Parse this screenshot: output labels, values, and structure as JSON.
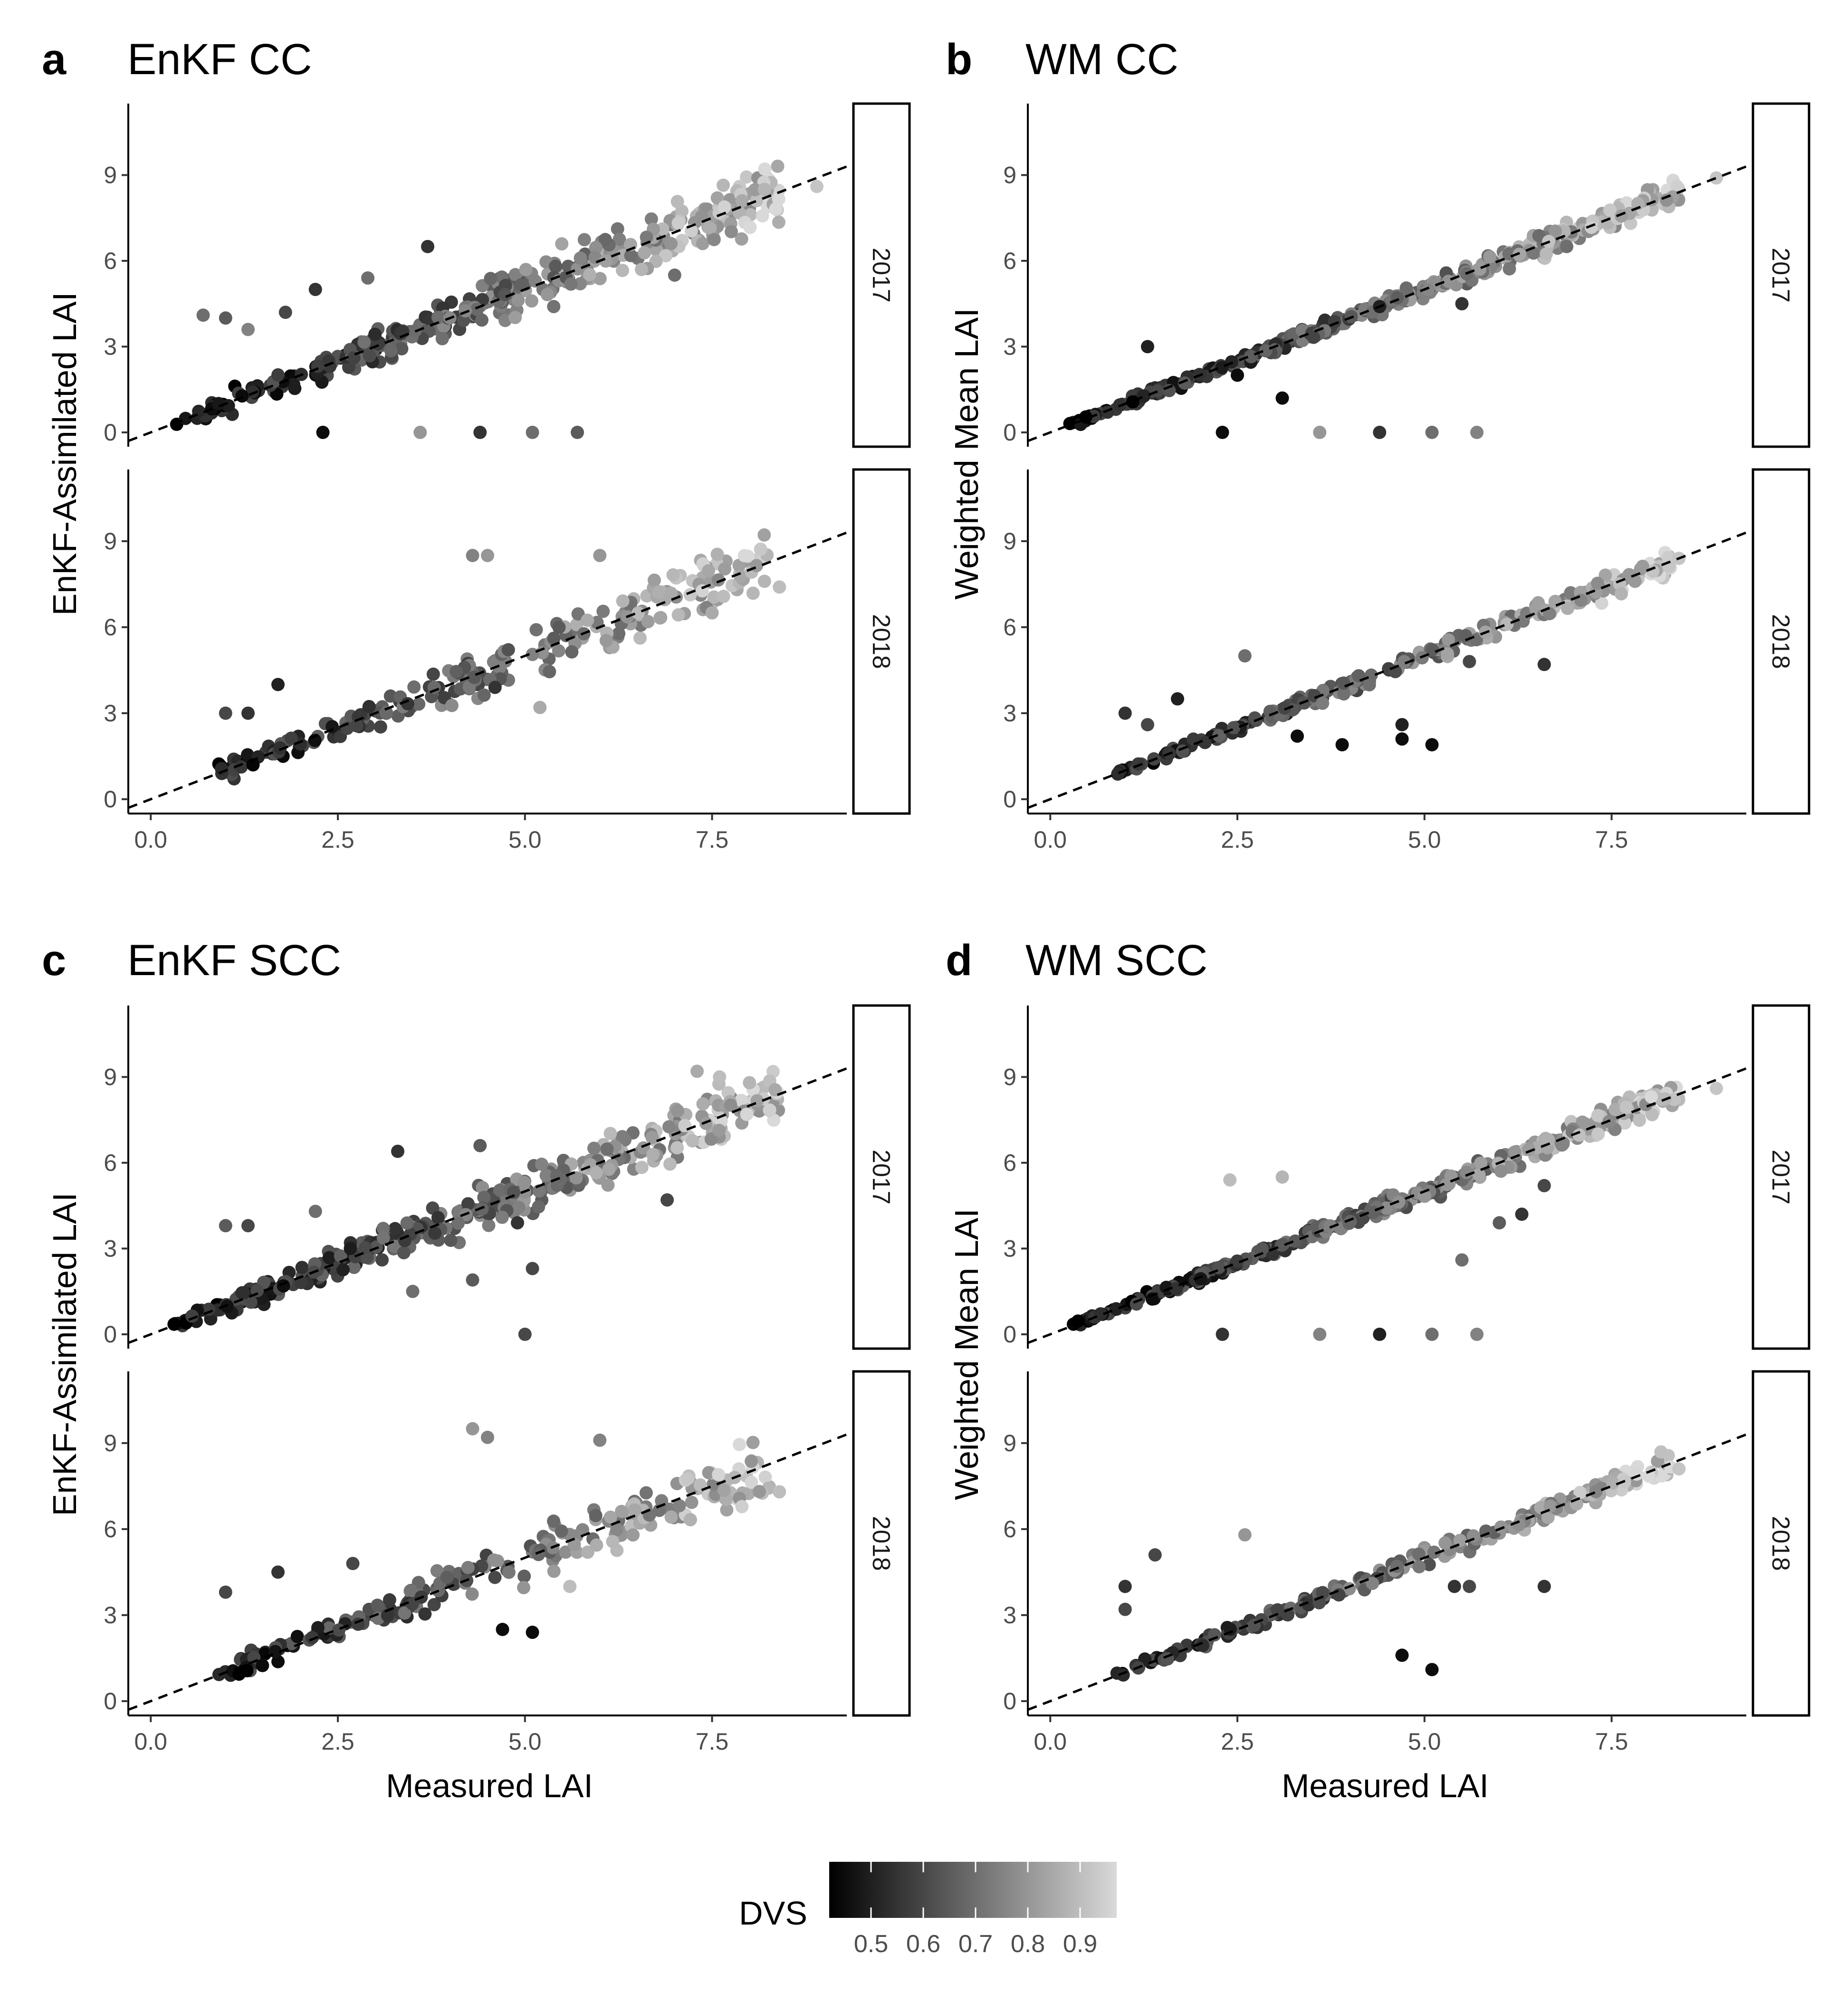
{
  "chart_data": [
    {
      "panel": "a",
      "title": "EnKF CC",
      "type": "scatter",
      "xlabel": "",
      "ylabel": "EnKF-Assimilated LAI",
      "xlim": [
        -0.3,
        9.3
      ],
      "ylim": [
        -0.5,
        11.5
      ],
      "xticks": [
        "0.0",
        "2.5",
        "5.0",
        "7.5"
      ],
      "yticks": [
        "0",
        "3",
        "6",
        "9"
      ],
      "reference_line": "1:1 dashed",
      "facets": [
        {
          "label": "2017",
          "seed": 11,
          "points": [
            {
              "x": 2.3,
              "y": 0.0,
              "dvs": 0.45
            },
            {
              "x": 3.6,
              "y": 0.0,
              "dvs": 0.8
            },
            {
              "x": 4.4,
              "y": 0.0,
              "dvs": 0.55
            },
            {
              "x": 5.1,
              "y": 0.0,
              "dvs": 0.7
            },
            {
              "x": 5.7,
              "y": 0.0,
              "dvs": 0.65
            },
            {
              "x": 0.7,
              "y": 4.1,
              "dvs": 0.7
            },
            {
              "x": 1.0,
              "y": 4.0,
              "dvs": 0.65
            },
            {
              "x": 1.3,
              "y": 3.6,
              "dvs": 0.75
            },
            {
              "x": 1.8,
              "y": 4.2,
              "dvs": 0.6
            },
            {
              "x": 2.2,
              "y": 5.0,
              "dvs": 0.55
            },
            {
              "x": 2.9,
              "y": 5.4,
              "dvs": 0.7
            },
            {
              "x": 3.7,
              "y": 6.5,
              "dvs": 0.55
            },
            {
              "x": 8.9,
              "y": 8.6,
              "dvs": 0.92
            },
            {
              "x": 8.2,
              "y": 8.5,
              "dvs": 0.88
            },
            {
              "x": 7.9,
              "y": 8.1,
              "dvs": 0.85
            },
            {
              "x": 7.0,
              "y": 5.5,
              "dvs": 0.7
            }
          ]
        },
        {
          "label": "2018",
          "seed": 12,
          "points": [
            {
              "x": 4.3,
              "y": 8.5,
              "dvs": 0.75
            },
            {
              "x": 4.5,
              "y": 8.5,
              "dvs": 0.8
            },
            {
              "x": 6.0,
              "y": 8.5,
              "dvs": 0.8
            },
            {
              "x": 1.0,
              "y": 3.0,
              "dvs": 0.6
            },
            {
              "x": 1.3,
              "y": 3.0,
              "dvs": 0.55
            },
            {
              "x": 1.7,
              "y": 4.0,
              "dvs": 0.5
            },
            {
              "x": 5.2,
              "y": 3.2,
              "dvs": 0.85
            },
            {
              "x": 8.4,
              "y": 7.4,
              "dvs": 0.9
            },
            {
              "x": 8.2,
              "y": 7.6,
              "dvs": 0.88
            },
            {
              "x": 7.5,
              "y": 6.5,
              "dvs": 0.85
            },
            {
              "x": 4.6,
              "y": 3.9,
              "dvs": 0.55
            }
          ]
        }
      ]
    },
    {
      "panel": "b",
      "title": "WM CC",
      "type": "scatter",
      "xlabel": "",
      "ylabel": "Weighted Mean LAI",
      "xlim": [
        -0.3,
        9.3
      ],
      "ylim": [
        -0.5,
        11.5
      ],
      "xticks": [
        "0.0",
        "2.5",
        "5.0",
        "7.5"
      ],
      "yticks": [
        "0",
        "3",
        "6",
        "9"
      ],
      "reference_line": "1:1 dashed",
      "facets": [
        {
          "label": "2017",
          "seed": 21,
          "points": [
            {
              "x": 2.3,
              "y": 0.0,
              "dvs": 0.45
            },
            {
              "x": 3.6,
              "y": 0.0,
              "dvs": 0.8
            },
            {
              "x": 4.4,
              "y": 0.0,
              "dvs": 0.55
            },
            {
              "x": 5.1,
              "y": 0.0,
              "dvs": 0.7
            },
            {
              "x": 5.7,
              "y": 0.0,
              "dvs": 0.75
            },
            {
              "x": 1.3,
              "y": 3.0,
              "dvs": 0.5
            },
            {
              "x": 2.5,
              "y": 2.0,
              "dvs": 0.45
            },
            {
              "x": 3.1,
              "y": 1.2,
              "dvs": 0.45
            },
            {
              "x": 8.9,
              "y": 8.9,
              "dvs": 0.92
            },
            {
              "x": 4.4,
              "y": 4.4,
              "dvs": 0.5
            },
            {
              "x": 5.5,
              "y": 4.5,
              "dvs": 0.55
            },
            {
              "x": 6.9,
              "y": 6.5,
              "dvs": 0.7
            }
          ]
        },
        {
          "label": "2018",
          "seed": 22,
          "points": [
            {
              "x": 2.6,
              "y": 5.0,
              "dvs": 0.7
            },
            {
              "x": 6.6,
              "y": 4.7,
              "dvs": 0.55
            },
            {
              "x": 5.6,
              "y": 4.8,
              "dvs": 0.6
            },
            {
              "x": 5.1,
              "y": 1.9,
              "dvs": 0.45
            },
            {
              "x": 4.7,
              "y": 2.6,
              "dvs": 0.5
            },
            {
              "x": 4.7,
              "y": 2.1,
              "dvs": 0.45
            },
            {
              "x": 3.9,
              "y": 1.9,
              "dvs": 0.45
            },
            {
              "x": 3.3,
              "y": 2.2,
              "dvs": 0.45
            },
            {
              "x": 1.0,
              "y": 3.0,
              "dvs": 0.55
            },
            {
              "x": 1.3,
              "y": 2.6,
              "dvs": 0.6
            },
            {
              "x": 1.7,
              "y": 3.5,
              "dvs": 0.5
            },
            {
              "x": 8.4,
              "y": 8.4,
              "dvs": 0.92
            }
          ]
        }
      ]
    },
    {
      "panel": "c",
      "title": "EnKF SCC",
      "type": "scatter",
      "xlabel": "Measured LAI",
      "ylabel": "EnKF-Assimilated LAI",
      "xlim": [
        -0.3,
        9.3
      ],
      "ylim": [
        -0.5,
        11.5
      ],
      "xticks": [
        "0.0",
        "2.5",
        "5.0",
        "7.5"
      ],
      "yticks": [
        "0",
        "3",
        "6",
        "9"
      ],
      "reference_line": "1:1 dashed",
      "facets": [
        {
          "label": "2017",
          "seed": 31,
          "points": [
            {
              "x": 5.0,
              "y": 0.0,
              "dvs": 0.6
            },
            {
              "x": 1.0,
              "y": 3.8,
              "dvs": 0.65
            },
            {
              "x": 1.3,
              "y": 3.8,
              "dvs": 0.6
            },
            {
              "x": 2.2,
              "y": 4.3,
              "dvs": 0.7
            },
            {
              "x": 3.3,
              "y": 6.4,
              "dvs": 0.55
            },
            {
              "x": 4.4,
              "y": 6.6,
              "dvs": 0.65
            },
            {
              "x": 7.3,
              "y": 9.2,
              "dvs": 0.85
            },
            {
              "x": 7.6,
              "y": 9.0,
              "dvs": 0.9
            },
            {
              "x": 8.0,
              "y": 8.8,
              "dvs": 0.88
            },
            {
              "x": 6.9,
              "y": 4.7,
              "dvs": 0.6
            },
            {
              "x": 5.1,
              "y": 2.3,
              "dvs": 0.6
            },
            {
              "x": 4.3,
              "y": 1.9,
              "dvs": 0.65
            },
            {
              "x": 3.5,
              "y": 1.5,
              "dvs": 0.7
            },
            {
              "x": 4.9,
              "y": 3.9,
              "dvs": 0.55
            }
          ]
        },
        {
          "label": "2018",
          "seed": 32,
          "points": [
            {
              "x": 4.3,
              "y": 9.5,
              "dvs": 0.8
            },
            {
              "x": 4.5,
              "y": 9.2,
              "dvs": 0.75
            },
            {
              "x": 6.0,
              "y": 9.1,
              "dvs": 0.75
            },
            {
              "x": 1.0,
              "y": 3.8,
              "dvs": 0.6
            },
            {
              "x": 1.7,
              "y": 4.5,
              "dvs": 0.55
            },
            {
              "x": 2.7,
              "y": 4.8,
              "dvs": 0.6
            },
            {
              "x": 4.7,
              "y": 2.5,
              "dvs": 0.45
            },
            {
              "x": 5.1,
              "y": 2.4,
              "dvs": 0.45
            },
            {
              "x": 5.6,
              "y": 4.0,
              "dvs": 0.9
            },
            {
              "x": 8.4,
              "y": 7.3,
              "dvs": 0.9
            },
            {
              "x": 7.8,
              "y": 7.8,
              "dvs": 0.88
            }
          ]
        }
      ]
    },
    {
      "panel": "d",
      "title": "WM SCC",
      "type": "scatter",
      "xlabel": "Measured LAI",
      "ylabel": "Weighted Mean LAI",
      "xlim": [
        -0.3,
        9.3
      ],
      "ylim": [
        -0.5,
        11.5
      ],
      "xticks": [
        "0.0",
        "2.5",
        "5.0",
        "7.5"
      ],
      "yticks": [
        "0",
        "3",
        "6",
        "9"
      ],
      "reference_line": "1:1 dashed",
      "facets": [
        {
          "label": "2017",
          "seed": 41,
          "points": [
            {
              "x": 2.3,
              "y": 0.0,
              "dvs": 0.55
            },
            {
              "x": 3.6,
              "y": 0.0,
              "dvs": 0.75
            },
            {
              "x": 4.4,
              "y": 0.0,
              "dvs": 0.5
            },
            {
              "x": 5.1,
              "y": 0.0,
              "dvs": 0.7
            },
            {
              "x": 5.7,
              "y": 0.0,
              "dvs": 0.75
            },
            {
              "x": 2.4,
              "y": 5.4,
              "dvs": 0.9
            },
            {
              "x": 3.1,
              "y": 5.5,
              "dvs": 0.88
            },
            {
              "x": 6.6,
              "y": 5.2,
              "dvs": 0.6
            },
            {
              "x": 6.3,
              "y": 4.2,
              "dvs": 0.55
            },
            {
              "x": 6.0,
              "y": 3.9,
              "dvs": 0.65
            },
            {
              "x": 8.9,
              "y": 8.6,
              "dvs": 0.92
            },
            {
              "x": 5.5,
              "y": 2.6,
              "dvs": 0.7
            }
          ]
        },
        {
          "label": "2018",
          "seed": 42,
          "points": [
            {
              "x": 2.6,
              "y": 5.8,
              "dvs": 0.8
            },
            {
              "x": 6.6,
              "y": 4.0,
              "dvs": 0.55
            },
            {
              "x": 5.6,
              "y": 4.0,
              "dvs": 0.6
            },
            {
              "x": 5.4,
              "y": 4.0,
              "dvs": 0.55
            },
            {
              "x": 5.1,
              "y": 1.1,
              "dvs": 0.45
            },
            {
              "x": 4.7,
              "y": 1.6,
              "dvs": 0.45
            },
            {
              "x": 1.0,
              "y": 4.0,
              "dvs": 0.55
            },
            {
              "x": 1.4,
              "y": 5.1,
              "dvs": 0.6
            },
            {
              "x": 1.0,
              "y": 3.2,
              "dvs": 0.6
            },
            {
              "x": 8.4,
              "y": 8.1,
              "dvs": 0.92
            }
          ]
        }
      ]
    }
  ],
  "legend": {
    "title": "DVS",
    "ticks": [
      "0.5",
      "0.6",
      "0.7",
      "0.8",
      "0.9"
    ],
    "tick_values": [
      0.5,
      0.6,
      0.7,
      0.8,
      0.9
    ],
    "range": [
      0.42,
      0.97
    ],
    "color_low": "#000000",
    "color_high": "#d9d9d9"
  }
}
